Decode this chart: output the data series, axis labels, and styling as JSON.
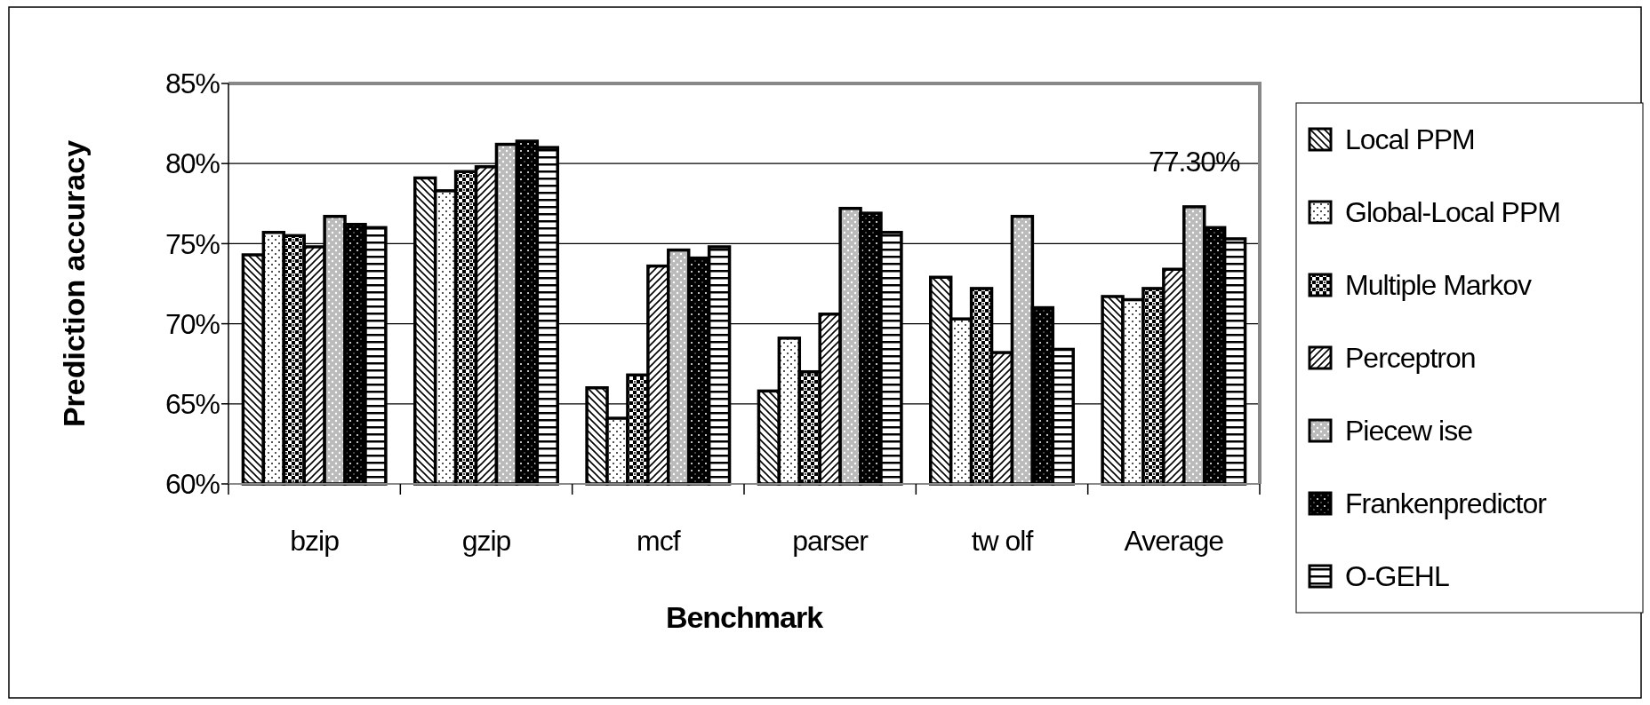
{
  "chart_data": {
    "type": "bar",
    "xlabel": "Benchmark",
    "ylabel": "Prediction accuracy",
    "categories": [
      "bzip",
      "gzip",
      "mcf",
      "parser",
      "tw olf",
      "Average"
    ],
    "series": [
      {
        "name": "Local PPM",
        "color": "#000000",
        "values": [
          74.3,
          79.1,
          66.0,
          65.8,
          72.9,
          71.7
        ]
      },
      {
        "name": "Global-Local PPM",
        "color": "#000000",
        "values": [
          75.7,
          78.3,
          64.1,
          69.1,
          70.3,
          71.5
        ]
      },
      {
        "name": "Multiple Markov",
        "color": "#000000",
        "values": [
          75.5,
          79.5,
          66.8,
          67.0,
          72.2,
          72.2
        ]
      },
      {
        "name": "Perceptron",
        "color": "#000000",
        "values": [
          74.8,
          79.8,
          73.6,
          70.6,
          68.2,
          73.4
        ]
      },
      {
        "name": "Piecew ise",
        "color": "#000000",
        "values": [
          76.7,
          81.2,
          74.6,
          77.2,
          76.7,
          77.3
        ],
        "value_labels": [
          null,
          null,
          null,
          null,
          null,
          "77.30%"
        ]
      },
      {
        "name": "Frankenpredictor",
        "color": "#000000",
        "values": [
          76.2,
          81.4,
          74.1,
          76.9,
          71.0,
          76.0
        ]
      },
      {
        "name": "O-GEHL",
        "color": "#000000",
        "values": [
          76.0,
          81.0,
          74.8,
          75.7,
          68.4,
          75.3
        ]
      }
    ],
    "ylim": [
      60,
      85
    ],
    "yticks": [
      {
        "value": 60,
        "label": "60%"
      },
      {
        "value": 65,
        "label": "65%"
      },
      {
        "value": 70,
        "label": "70%"
      },
      {
        "value": 75,
        "label": "75%"
      },
      {
        "value": 80,
        "label": "80%"
      },
      {
        "value": 85,
        "label": "85%"
      }
    ],
    "grid": "y",
    "legend": "right"
  }
}
